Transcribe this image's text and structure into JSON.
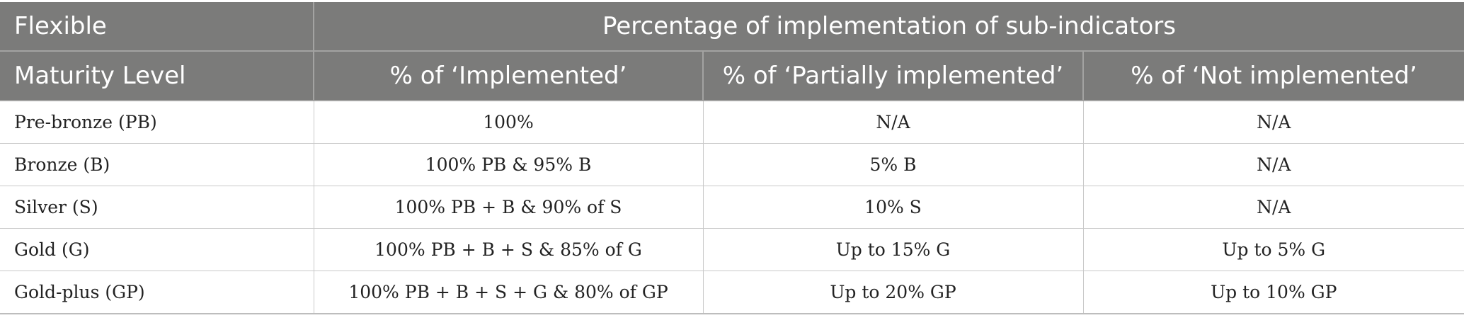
{
  "header": {
    "row1": {
      "col1": "Flexible",
      "group": "Percentage of implementation of sub-indicators"
    },
    "row2": {
      "col1": "Maturity Level",
      "col2": "% of ‘Implemented’",
      "col3": "% of ‘Partially implemented’",
      "col4": "% of ‘Not implemented’"
    }
  },
  "rows": [
    {
      "level": "Pre-bronze (PB)",
      "implemented": "100%",
      "partially": "N/A",
      "not_implemented": "N/A"
    },
    {
      "level": "Bronze (B)",
      "implemented": "100% PB & 95% B",
      "partially": "5% B",
      "not_implemented": "N/A"
    },
    {
      "level": "Silver (S)",
      "implemented": "100% PB + B & 90% of S",
      "partially": "10% S",
      "not_implemented": "N/A"
    },
    {
      "level": "Gold (G)",
      "implemented": "100% PB + B + S & 85% of G",
      "partially": "Up to 15% G",
      "not_implemented": "Up to 5% G"
    },
    {
      "level": "Gold-plus (GP)",
      "implemented": "100% PB + B + S + G & 80% of GP",
      "partially": "Up to 20% GP",
      "not_implemented": "Up to 10% GP"
    }
  ]
}
